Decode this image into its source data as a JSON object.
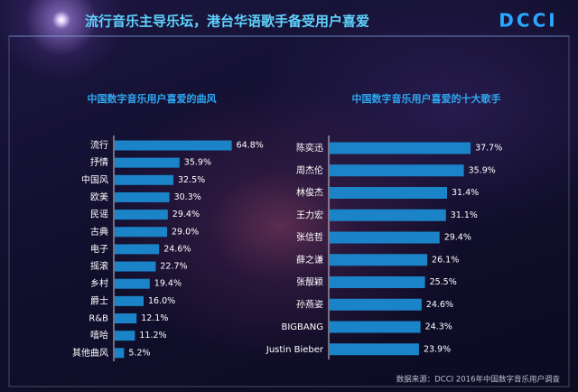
{
  "title": "流行音乐主导乐坛，港台华语歌手备受用户喜爱",
  "logo": "DCCI",
  "source": "数据来源：DCCI 2016年中国数字音乐用户调查",
  "chart_data": [
    {
      "type": "bar",
      "title": "中国数字音乐用户喜爱的曲风",
      "categories": [
        "流行",
        "抒情",
        "中国风",
        "欧美",
        "民谣",
        "古典",
        "电子",
        "摇滚",
        "乡村",
        "爵士",
        "R&B",
        "嘻哈",
        "其他曲风"
      ],
      "values": [
        64.8,
        35.9,
        32.5,
        30.3,
        29.4,
        29.0,
        24.6,
        22.7,
        19.4,
        16.0,
        12.1,
        11.2,
        5.2
      ],
      "value_labels": [
        "64.8%",
        "35.9%",
        "32.5%",
        "30.3%",
        "29.4%",
        "29.0%",
        "24.6%",
        "22.7%",
        "19.4%",
        "16.0%",
        "12.1%",
        "11.2%",
        "5.2%"
      ],
      "color": "#1b84c8"
    },
    {
      "type": "bar",
      "title": "中国数字音乐用户喜爱的十大歌手",
      "categories": [
        "陈奕迅",
        "周杰伦",
        "林俊杰",
        "王力宏",
        "张信哲",
        "薛之谦",
        "张靓颖",
        "孙燕姿",
        "BIGBANG",
        "Justin Bieber"
      ],
      "values": [
        37.7,
        35.9,
        31.4,
        31.1,
        29.4,
        26.1,
        25.5,
        24.6,
        24.3,
        23.9
      ],
      "value_labels": [
        "37.7%",
        "35.9%",
        "31.4%",
        "31.1%",
        "29.4%",
        "26.1%",
        "25.5%",
        "24.6%",
        "24.3%",
        "23.9%"
      ],
      "color": "#1b84c8"
    }
  ]
}
